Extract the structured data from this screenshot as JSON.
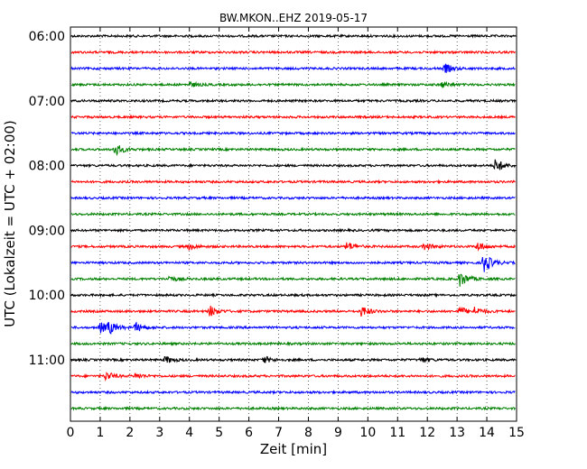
{
  "chart_data": {
    "type": "line",
    "title": "BW.MKON..EHZ 2019-05-17",
    "xlabel": "Zeit  [min]",
    "ylabel": "UTC (Lokalzeit = UTC + 02:00)",
    "xlim": [
      0,
      15
    ],
    "x_ticks": [
      "0",
      "1",
      "2",
      "3",
      "4",
      "5",
      "6",
      "7",
      "8",
      "9",
      "10",
      "11",
      "12",
      "13",
      "14",
      "15"
    ],
    "y_tick_labels": [
      "06:00",
      "07:00",
      "08:00",
      "09:00",
      "10:00",
      "11:00"
    ],
    "grid": {
      "x": true,
      "y": false,
      "style": "dotted"
    },
    "colors": [
      "#000000",
      "#ff0000",
      "#0000ff",
      "#008000"
    ],
    "traces": [
      {
        "start": "06:00",
        "color": "#000000",
        "events": []
      },
      {
        "start": "06:15",
        "color": "#ff0000",
        "events": []
      },
      {
        "start": "06:30",
        "color": "#0000ff",
        "events": [
          {
            "t": 12.6,
            "amp": 5
          }
        ]
      },
      {
        "start": "06:45",
        "color": "#008000",
        "events": [
          {
            "t": 4.0,
            "amp": 3
          },
          {
            "t": 12.5,
            "amp": 3
          }
        ]
      },
      {
        "start": "07:00",
        "color": "#000000",
        "events": []
      },
      {
        "start": "07:15",
        "color": "#ff0000",
        "events": []
      },
      {
        "start": "07:30",
        "color": "#0000ff",
        "events": []
      },
      {
        "start": "07:45",
        "color": "#008000",
        "events": [
          {
            "t": 1.5,
            "amp": 7
          }
        ]
      },
      {
        "start": "08:00",
        "color": "#000000",
        "events": [
          {
            "t": 14.3,
            "amp": 8
          }
        ]
      },
      {
        "start": "08:15",
        "color": "#ff0000",
        "events": []
      },
      {
        "start": "08:30",
        "color": "#0000ff",
        "events": []
      },
      {
        "start": "08:45",
        "color": "#008000",
        "events": []
      },
      {
        "start": "09:00",
        "color": "#000000",
        "events": []
      },
      {
        "start": "09:15",
        "color": "#ff0000",
        "events": [
          {
            "t": 4.0,
            "amp": 3
          },
          {
            "t": 9.3,
            "amp": 5
          },
          {
            "t": 11.9,
            "amp": 4
          },
          {
            "t": 13.7,
            "amp": 5
          }
        ]
      },
      {
        "start": "09:30",
        "color": "#0000ff",
        "events": [
          {
            "t": 13.9,
            "amp": 12
          }
        ]
      },
      {
        "start": "09:45",
        "color": "#008000",
        "events": [
          {
            "t": 3.3,
            "amp": 3
          },
          {
            "t": 13.1,
            "amp": 9
          }
        ]
      },
      {
        "start": "10:00",
        "color": "#000000",
        "events": []
      },
      {
        "start": "10:15",
        "color": "#ff0000",
        "events": [
          {
            "t": 4.7,
            "amp": 6
          },
          {
            "t": 9.8,
            "amp": 6
          },
          {
            "t": 13.1,
            "amp": 5
          },
          {
            "t": 13.6,
            "amp": 4
          }
        ]
      },
      {
        "start": "10:30",
        "color": "#0000ff",
        "events": [
          {
            "t": 1.0,
            "amp": 6
          },
          {
            "t": 1.3,
            "amp": 6
          },
          {
            "t": 2.2,
            "amp": 5
          }
        ]
      },
      {
        "start": "10:45",
        "color": "#008000",
        "events": []
      },
      {
        "start": "11:00",
        "color": "#000000",
        "events": [
          {
            "t": 3.2,
            "amp": 4
          },
          {
            "t": 6.5,
            "amp": 4
          },
          {
            "t": 11.8,
            "amp": 3
          }
        ]
      },
      {
        "start": "11:15",
        "color": "#ff0000",
        "events": [
          {
            "t": 1.2,
            "amp": 5
          },
          {
            "t": 2.2,
            "amp": 3
          }
        ]
      },
      {
        "start": "11:30",
        "color": "#0000ff",
        "events": []
      },
      {
        "start": "11:45",
        "color": "#008000",
        "events": []
      }
    ]
  }
}
